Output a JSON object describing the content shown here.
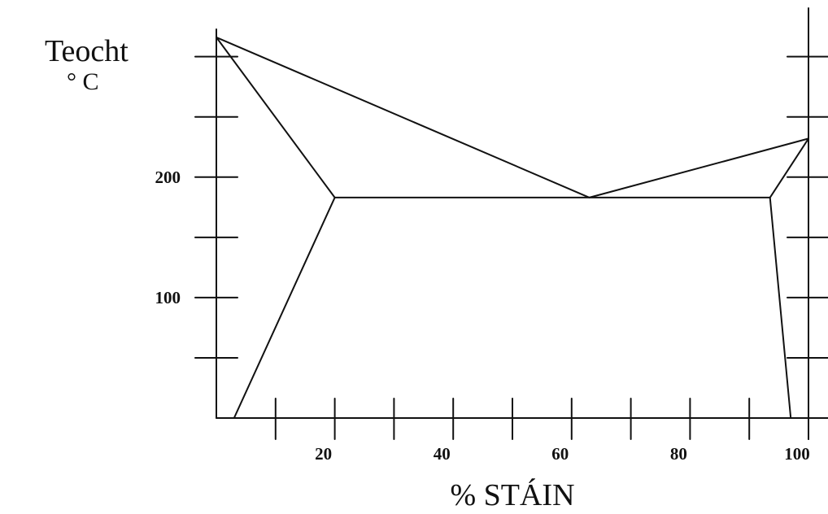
{
  "chart_data": {
    "type": "line",
    "ylabel": "Teocht",
    "yunit": "° C",
    "xlabel": "% STÁIN",
    "xlim": [
      0,
      100
    ],
    "ylim": [
      0,
      320
    ],
    "xticks": [
      10,
      20,
      30,
      40,
      50,
      60,
      70,
      80,
      90,
      100
    ],
    "xtick_labels": [
      {
        "x": 20,
        "label": "20"
      },
      {
        "x": 40,
        "label": "40"
      },
      {
        "x": 60,
        "label": "60"
      },
      {
        "x": 80,
        "label": "80"
      },
      {
        "x": 100,
        "label": "100"
      }
    ],
    "yticks": [
      50,
      100,
      150,
      200,
      250,
      300
    ],
    "ytick_labels": [
      {
        "y": 100,
        "label": "100"
      },
      {
        "y": 200,
        "label": "200"
      }
    ],
    "series": [
      {
        "points": [
          [
            0,
            316
          ],
          [
            63,
            183
          ]
        ]
      },
      {
        "points": [
          [
            63,
            183
          ],
          [
            100,
            232
          ]
        ]
      },
      {
        "points": [
          [
            0,
            316
          ],
          [
            20,
            183
          ]
        ]
      },
      {
        "points": [
          [
            20,
            183
          ],
          [
            3,
            0
          ]
        ]
      },
      {
        "points": [
          [
            20,
            183
          ],
          [
            93.5,
            183
          ]
        ]
      },
      {
        "points": [
          [
            93.5,
            183
          ],
          [
            100,
            232
          ]
        ]
      },
      {
        "points": [
          [
            93.5,
            183
          ],
          [
            97,
            0
          ]
        ]
      }
    ]
  }
}
